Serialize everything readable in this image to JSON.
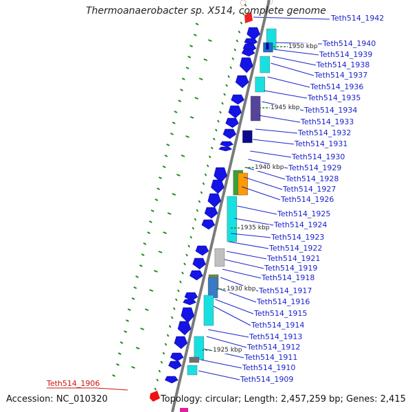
{
  "title": "Thermoanaerobacter sp. X514, complete genome",
  "footer": {
    "accession": "Accession: NC_010320",
    "summary": "Topology: circular; Length: 2,457,259 bp; Genes: 2,415"
  },
  "colors": {
    "gene_blue": "#1414e6",
    "gene_cyan": "#19e0e0",
    "backbone": "#7a7a7a",
    "gc_tick": "#1a8a1a",
    "label_blue": "#1a22cc",
    "label_red": "#cc1111"
  },
  "kbp_markers": [
    "1950 kbp",
    "1945 kbp",
    "1940 kbp",
    "1935 kbp",
    "1930 kbp",
    "1925 kbp"
  ],
  "gene_labels": [
    {
      "text": "Teth514_1942",
      "color": "blue"
    },
    {
      "text": "Teth514_1940",
      "color": "blue"
    },
    {
      "text": "Teth514_1939",
      "color": "blue"
    },
    {
      "text": "Teth514_1938",
      "color": "blue"
    },
    {
      "text": "Teth514_1937",
      "color": "blue"
    },
    {
      "text": "Teth514_1936",
      "color": "blue"
    },
    {
      "text": "Teth514_1935",
      "color": "blue"
    },
    {
      "text": "Teth514_1934",
      "color": "blue"
    },
    {
      "text": "Teth514_1933",
      "color": "blue"
    },
    {
      "text": "Teth514_1932",
      "color": "blue"
    },
    {
      "text": "Teth514_1931",
      "color": "blue"
    },
    {
      "text": "Teth514_1930",
      "color": "blue"
    },
    {
      "text": "Teth514_1929",
      "color": "blue"
    },
    {
      "text": "Teth514_1928",
      "color": "blue"
    },
    {
      "text": "Teth514_1927",
      "color": "blue"
    },
    {
      "text": "Teth514_1926",
      "color": "blue"
    },
    {
      "text": "Teth514_1925",
      "color": "blue"
    },
    {
      "text": "Teth514_1924",
      "color": "blue"
    },
    {
      "text": "Teth514_1923",
      "color": "blue"
    },
    {
      "text": "Teth514_1922",
      "color": "blue"
    },
    {
      "text": "Teth514_1921",
      "color": "blue"
    },
    {
      "text": "Teth514_1919",
      "color": "blue"
    },
    {
      "text": "Teth514_1918",
      "color": "blue"
    },
    {
      "text": "Teth514_1917",
      "color": "blue"
    },
    {
      "text": "Teth514_1916",
      "color": "blue"
    },
    {
      "text": "Teth514_1915",
      "color": "blue"
    },
    {
      "text": "Teth514_1914",
      "color": "blue"
    },
    {
      "text": "Teth514_1913",
      "color": "blue"
    },
    {
      "text": "Teth514_1912",
      "color": "blue"
    },
    {
      "text": "Teth514_1911",
      "color": "blue"
    },
    {
      "text": "Teth514_1910",
      "color": "blue"
    },
    {
      "text": "Teth514_1909",
      "color": "blue"
    },
    {
      "text": "Teth514_1906",
      "color": "red"
    }
  ]
}
